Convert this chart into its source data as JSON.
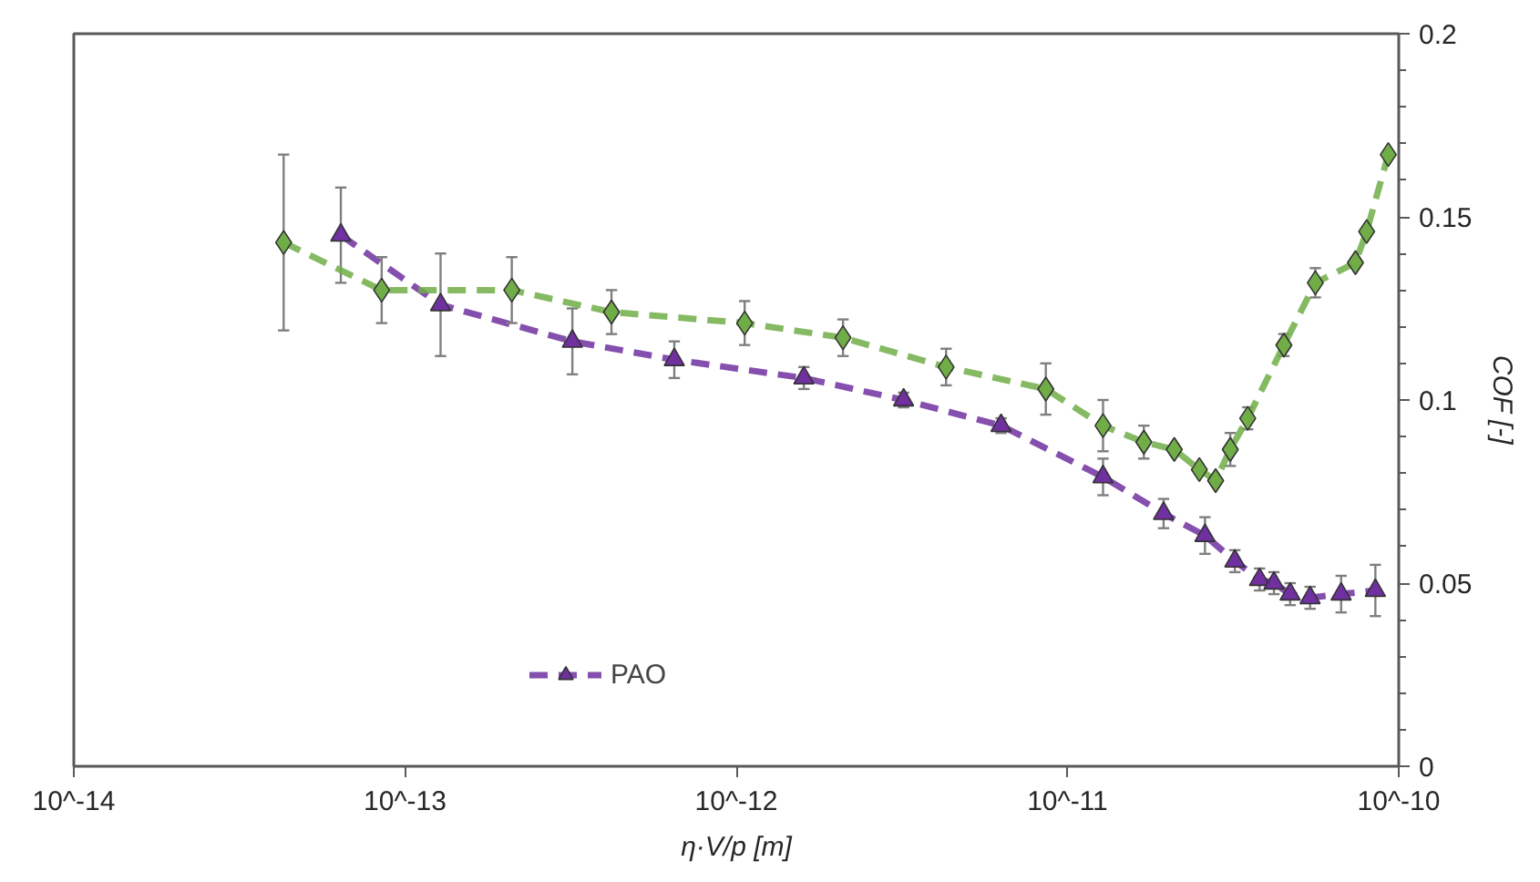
{
  "chart_data": {
    "type": "line",
    "xlabel": "η·V/p [m]",
    "ylabel": "COF [-]",
    "log": "x",
    "xlim": [
      1e-14,
      1e-10
    ],
    "xticks": [
      {
        "value": 1e-14,
        "label": "10^-14"
      },
      {
        "value": 1e-13,
        "label": "10^-13"
      },
      {
        "value": 1e-12,
        "label": "10^-12"
      },
      {
        "value": 1e-11,
        "label": "10^-11"
      },
      {
        "value": 1e-10,
        "label": "10^-10"
      }
    ],
    "ylim": [
      0,
      0.2
    ],
    "yticks": [
      0,
      0.05,
      0.1,
      0.15,
      0.2
    ],
    "grid": false,
    "legend": "bottom left",
    "line_style": "dashed",
    "series": [
      {
        "name": "PAO",
        "color": "#7030a0",
        "marker": "triangle",
        "x": [
          6.4e-14,
          1.28e-13,
          3.2e-13,
          6.5e-13,
          1.6e-12,
          3.2e-12,
          6.3e-12,
          1.28e-11,
          1.95e-11,
          2.6e-11,
          3.2e-11,
          3.8e-11,
          4.2e-11,
          4.7e-11,
          5.4e-11,
          6.7e-11,
          8.5e-11
        ],
        "values": [
          0.145,
          0.126,
          0.116,
          0.111,
          0.106,
          0.1,
          0.093,
          0.079,
          0.069,
          0.063,
          0.056,
          0.051,
          0.05,
          0.047,
          0.046,
          0.047,
          0.048
        ],
        "errors": [
          0.013,
          0.014,
          0.009,
          0.005,
          0.003,
          0.002,
          0.002,
          0.005,
          0.004,
          0.005,
          0.003,
          0.003,
          0.003,
          0.003,
          0.003,
          0.005,
          0.007
        ]
      },
      {
        "color": "#70ad47",
        "marker": "diamond",
        "x": [
          4.3e-14,
          8.5e-14,
          2.1e-13,
          4.2e-13,
          1.06e-12,
          2.1e-12,
          4.3e-12,
          8.6e-12,
          1.28e-11,
          1.7e-11,
          2.1e-11,
          2.5e-11,
          2.8e-11,
          3.1e-11,
          3.5e-11,
          4.5e-11,
          5.6e-11,
          7.4e-11,
          8e-11,
          9.3e-11
        ],
        "values": [
          0.143,
          0.13,
          0.13,
          0.124,
          0.121,
          0.117,
          0.109,
          0.103,
          0.093,
          0.0885,
          0.0865,
          0.081,
          0.078,
          0.0865,
          0.095,
          0.115,
          0.132,
          0.1375,
          0.146,
          0.167
        ],
        "errors": [
          0.024,
          0.009,
          0.009,
          0.006,
          0.006,
          0.005,
          0.005,
          0.007,
          0.007,
          0.0045,
          null,
          null,
          null,
          0.0045,
          0.003,
          0.003,
          0.004,
          null,
          null,
          null
        ]
      }
    ]
  }
}
